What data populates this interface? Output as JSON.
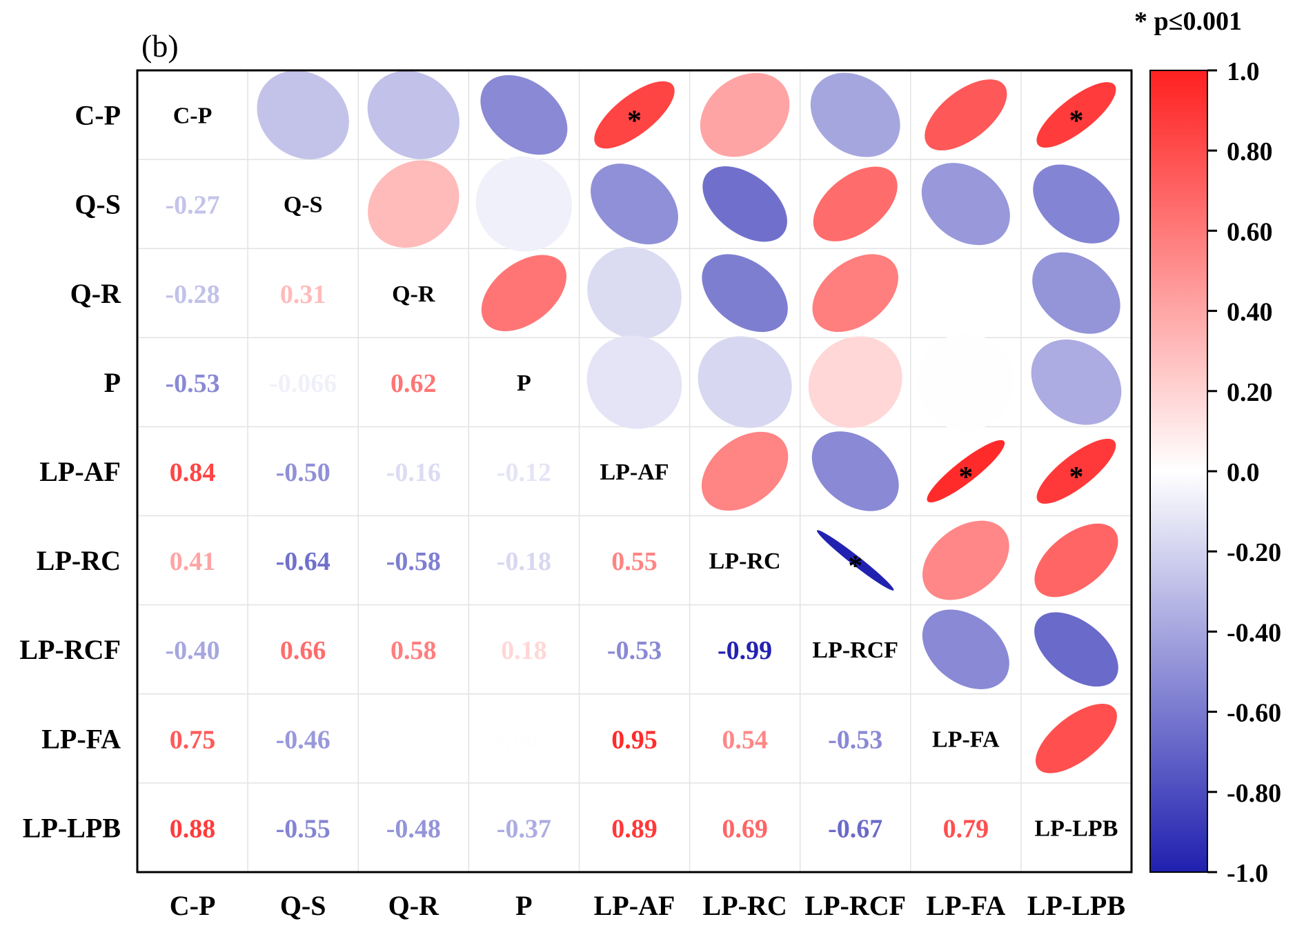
{
  "chart_data": {
    "type": "heatmap",
    "subtype": "correlogram",
    "panel_label": "(b)",
    "significance_note": "* p≤0.001",
    "variables": [
      "C-P",
      "Q-S",
      "Q-R",
      "P",
      "LP-AF",
      "LP-RC",
      "LP-RCF",
      "LP-FA",
      "LP-LPB"
    ],
    "lower_labels": [
      [
        null,
        null,
        null,
        null,
        null,
        null,
        null,
        null,
        null
      ],
      [
        "-0.27",
        null,
        null,
        null,
        null,
        null,
        null,
        null,
        null
      ],
      [
        "-0.28",
        "0.31",
        null,
        null,
        null,
        null,
        null,
        null,
        null
      ],
      [
        "-0.53",
        "-0.066",
        "0.62",
        null,
        null,
        null,
        null,
        null,
        null
      ],
      [
        "0.84",
        "-0.50",
        "-0.16",
        "-0.12",
        null,
        null,
        null,
        null,
        null
      ],
      [
        "0.41",
        "-0.64",
        "-0.58",
        "-0.18",
        "0.55",
        null,
        null,
        null,
        null
      ],
      [
        "-0.40",
        "0.66",
        "0.58",
        "0.18",
        "-0.53",
        "-0.99",
        null,
        null,
        null
      ],
      [
        "0.75",
        "-0.46",
        "",
        "-0.0055",
        "0.95",
        "0.54",
        "-0.53",
        null,
        null
      ],
      [
        "0.88",
        "-0.55",
        "-0.48",
        "-0.37",
        "0.89",
        "0.69",
        "-0.67",
        "0.79",
        null
      ]
    ],
    "matrix": [
      [
        1,
        -0.27,
        -0.28,
        -0.53,
        0.84,
        0.41,
        -0.4,
        0.75,
        0.88
      ],
      [
        -0.27,
        1,
        0.31,
        -0.066,
        -0.5,
        -0.64,
        0.66,
        -0.46,
        -0.55
      ],
      [
        -0.28,
        0.31,
        1,
        0.62,
        -0.16,
        -0.58,
        0.58,
        0.0,
        -0.48
      ],
      [
        -0.53,
        -0.066,
        0.62,
        1,
        -0.12,
        -0.18,
        0.18,
        -0.0055,
        -0.37
      ],
      [
        0.84,
        -0.5,
        -0.16,
        -0.12,
        1,
        0.55,
        -0.53,
        0.95,
        0.89
      ],
      [
        0.41,
        -0.64,
        -0.58,
        -0.18,
        0.55,
        1,
        -0.99,
        0.54,
        0.69
      ],
      [
        -0.4,
        0.66,
        0.58,
        0.18,
        -0.53,
        -0.99,
        1,
        -0.53,
        -0.67
      ],
      [
        0.75,
        -0.46,
        0.0,
        -0.0055,
        0.95,
        0.54,
        -0.53,
        1,
        0.79
      ],
      [
        0.88,
        -0.55,
        -0.48,
        -0.37,
        0.89,
        0.69,
        -0.67,
        0.79,
        1
      ]
    ],
    "significant_pairs": [
      [
        0,
        4
      ],
      [
        0,
        8
      ],
      [
        4,
        7
      ],
      [
        4,
        8
      ],
      [
        5,
        6
      ]
    ],
    "significance_marker": "*",
    "upper_encoding": "ellipse",
    "lower_encoding": "number",
    "colorbar": {
      "range": [
        -1.0,
        1.0
      ],
      "ticks": [
        "1.0",
        "0.80",
        "0.60",
        "0.40",
        "0.20",
        "0.0",
        "-0.20",
        "-0.40",
        "-0.60",
        "-0.80",
        "-1.0"
      ],
      "tick_values": [
        1.0,
        0.8,
        0.6,
        0.4,
        0.2,
        0.0,
        -0.2,
        -0.4,
        -0.6,
        -0.8,
        -1.0
      ],
      "colors": {
        "positive": "#ff2020",
        "zero": "#ffffff",
        "negative": "#2020b0"
      }
    }
  }
}
